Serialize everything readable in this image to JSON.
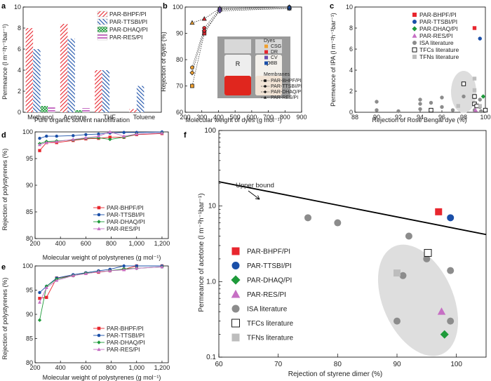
{
  "colors": {
    "bhpf": "#e8262e",
    "ttsbi": "#1a4fa8",
    "dhaq": "#1e9a3a",
    "res": "#c66fc4",
    "isa": "#8c8c8c",
    "tfc": "#ffffff",
    "tfn": "#bdbdbd"
  },
  "chart_data": [
    {
      "id": "a",
      "panel_label": "a",
      "type": "bar",
      "categories": [
        "Methanol",
        "Acetone",
        "THF",
        "Toluene"
      ],
      "series": [
        {
          "name": "PAR-BHPF/PI",
          "values": [
            8.0,
            8.4,
            4.0,
            0.3
          ]
        },
        {
          "name": "PAR-TTSBI/PI",
          "values": [
            6.0,
            7.0,
            4.0,
            2.5
          ]
        },
        {
          "name": "PAR-DHAQ/PI",
          "values": [
            0.6,
            0.2,
            0.0,
            0.0
          ]
        },
        {
          "name": "PAR-RES/PI",
          "values": [
            0.6,
            0.4,
            0.0,
            0.0
          ]
        }
      ],
      "xlabel": "Pure organic solvent nanofiltration",
      "ylabel": "Permeance (l m⁻²h⁻¹bar⁻¹)",
      "ylim": [
        0,
        10
      ],
      "yticks": [
        "0",
        "2",
        "4",
        "6",
        "8",
        "10"
      ]
    },
    {
      "id": "b",
      "panel_label": "b",
      "type": "scatter",
      "xlabel": "Molecular weight of dyes (g mol⁻¹)",
      "ylabel": "Rejection of dyes (%)",
      "xlim": [
        200,
        900
      ],
      "ylim": [
        60,
        100
      ],
      "xticks": [
        "200",
        "300",
        "400",
        "500",
        "600",
        "700",
        "800",
        "900"
      ],
      "yticks": [
        "60",
        "70",
        "80",
        "90",
        "100"
      ],
      "dye_x": [
        242,
        315,
        408,
        826
      ],
      "dyes_title": "Dyes",
      "dyes": [
        {
          "name": "CSG",
          "color": "#f0a030"
        },
        {
          "name": "DR",
          "color": "#e8262e"
        },
        {
          "name": "CV",
          "color": "#6a4fb0"
        },
        {
          "name": "BB",
          "color": "#1a4fa8"
        }
      ],
      "membranes_title": "Membranes",
      "series": [
        {
          "name": "PAR-BHPF/PI",
          "marker": "square",
          "values": [
            70,
            90,
            99,
            99.5
          ]
        },
        {
          "name": "PAR-TTSBI/PI",
          "marker": "circle",
          "values": [
            77,
            92,
            99.3,
            100
          ]
        },
        {
          "name": "PAR-DHAQ/PI",
          "marker": "diamond",
          "values": [
            75,
            91,
            98.5,
            99.5
          ]
        },
        {
          "name": "PAR-RES/PI",
          "marker": "triangle",
          "values": [
            94,
            95.5,
            99.5,
            100
          ]
        }
      ],
      "vial_labels": [
        "R",
        "P"
      ]
    },
    {
      "id": "c",
      "panel_label": "c",
      "type": "scatter",
      "xlabel": "Rejection of Rose Bengal dye (%)",
      "ylabel": "Permeance of IPA (l m⁻²h⁻¹bar⁻¹)",
      "xlim": [
        88,
        100
      ],
      "ylim": [
        0,
        10
      ],
      "xticks": [
        "88",
        "90",
        "92",
        "94",
        "96",
        "98",
        "100"
      ],
      "yticks": [
        "0",
        "2",
        "4",
        "6",
        "8",
        "10"
      ],
      "series": [
        {
          "name": "PAR-BHPF/PI",
          "marker": "square",
          "points": [
            [
              99,
              8
            ]
          ]
        },
        {
          "name": "PAR-TTSBI/PI",
          "marker": "circle",
          "points": [
            [
              99.5,
              7
            ]
          ]
        },
        {
          "name": "PAR-DHAQ/PI",
          "marker": "diamond",
          "points": [
            [
              99.8,
              1.5
            ]
          ]
        },
        {
          "name": "PAR-RES/PI",
          "marker": "triangle",
          "points": [
            [
              99.1,
              0.2
            ]
          ]
        },
        {
          "name": "ISA literature",
          "marker": "circle",
          "points": [
            [
              90,
              0.2
            ],
            [
              90,
              1
            ],
            [
              92,
              0.1
            ],
            [
              94,
              0.3
            ],
            [
              94,
              0.8
            ],
            [
              94,
              1.2
            ],
            [
              95,
              0.9
            ],
            [
              96,
              0.5
            ],
            [
              96,
              1.4
            ],
            [
              97,
              0.2
            ],
            [
              98,
              1.5
            ],
            [
              99,
              0.2
            ],
            [
              99.5,
              0.5
            ],
            [
              99.5,
              1.2
            ],
            [
              99.6,
              0.1
            ]
          ]
        },
        {
          "name": "TFCs literature",
          "marker": "square-open",
          "points": [
            [
              95,
              0.2
            ],
            [
              98,
              2.7
            ],
            [
              99,
              1.5
            ],
            [
              99,
              0.8
            ],
            [
              99.2,
              0.6
            ],
            [
              100,
              0.2
            ]
          ]
        },
        {
          "name": "TFNs literature",
          "marker": "square",
          "points": [
            [
              97.5,
              0.6
            ],
            [
              99,
              3.2
            ],
            [
              99,
              2.1
            ],
            [
              99.5,
              0.6
            ]
          ]
        }
      ]
    },
    {
      "id": "d",
      "panel_label": "d",
      "type": "line",
      "xlabel": "Molecular weight of polystyrenes (g mol⁻¹)",
      "ylabel": "Rejection of polystyrenes (%)",
      "xlim": [
        200,
        1250
      ],
      "ylim": [
        80,
        100
      ],
      "xticks": [
        "200",
        "400",
        "600",
        "800",
        "1,000",
        "1,200"
      ],
      "yticks": [
        "80",
        "85",
        "90",
        "95",
        "100"
      ],
      "x": [
        236,
        290,
        370,
        500,
        600,
        700,
        790,
        900,
        1000,
        1200
      ],
      "series": [
        {
          "name": "PAR-BHPF/PI",
          "marker": "square",
          "values": [
            96.5,
            98,
            98,
            98.4,
            98.7,
            98.8,
            99,
            99,
            99.5,
            99.7
          ]
        },
        {
          "name": "PAR-TTSBI/PI",
          "marker": "circle",
          "values": [
            98.8,
            99.2,
            99.2,
            99.3,
            99.5,
            99.6,
            99.8,
            99.9,
            99.9,
            100
          ]
        },
        {
          "name": "PAR-DHAQ/PI",
          "marker": "diamond",
          "values": [
            97.8,
            98.2,
            98.3,
            98.5,
            98.8,
            98.9,
            98.6,
            99,
            99.6,
            99.8
          ]
        },
        {
          "name": "PAR-RES/PI",
          "marker": "triangle",
          "values": [
            97.6,
            98,
            98.2,
            98.6,
            98.9,
            99.2,
            100,
            99.2,
            99.6,
            99.8
          ]
        }
      ]
    },
    {
      "id": "e",
      "panel_label": "e",
      "type": "line",
      "xlabel": "Molecular weight of polystyrenes (g mol⁻¹)",
      "ylabel": "Rejection of polystyrenes (%)",
      "xlim": [
        200,
        1250
      ],
      "ylim": [
        80,
        100
      ],
      "xticks": [
        "200",
        "400",
        "600",
        "800",
        "1,000",
        "1,200"
      ],
      "yticks": [
        "80",
        "85",
        "90",
        "95",
        "100"
      ],
      "x": [
        236,
        290,
        370,
        500,
        600,
        700,
        790,
        900,
        1000,
        1200
      ],
      "series": [
        {
          "name": "PAR-BHPF/PI",
          "marker": "square",
          "values": [
            93.3,
            93.5,
            97.5,
            98,
            98.5,
            98.7,
            99,
            99.3,
            100,
            100
          ]
        },
        {
          "name": "PAR-TTSBI/PI",
          "marker": "circle",
          "values": [
            94.5,
            95.8,
            97.5,
            98.2,
            98.6,
            99,
            99.3,
            100,
            100,
            100
          ]
        },
        {
          "name": "PAR-DHAQ/PI",
          "marker": "diamond",
          "values": [
            88.8,
            95.8,
            97.3,
            98,
            98.5,
            98.8,
            99,
            99.4,
            99.5,
            99.8
          ]
        },
        {
          "name": "PAR-RES/PI",
          "marker": "triangle",
          "values": [
            92.5,
            95.5,
            97,
            98,
            98.4,
            98.8,
            99,
            99.2,
            99.5,
            99.8
          ]
        }
      ]
    },
    {
      "id": "f",
      "panel_label": "f",
      "type": "scatter",
      "xlabel": "Rejection of styrene dimer  (%)",
      "ylabel": "Permeance of acetone (l m⁻²h⁻¹bar⁻¹)",
      "xlim": [
        60,
        105
      ],
      "ylim_log": [
        0.1,
        100
      ],
      "xticks": [
        "60",
        "70",
        "80",
        "90",
        "100"
      ],
      "yticks": [
        "0.1",
        "1.0",
        "10",
        "100"
      ],
      "upper_bound_label": "Upper bound",
      "upper_bound_line": [
        [
          60,
          21
        ],
        [
          105,
          4.2
        ]
      ],
      "series": [
        {
          "name": "PAR-BHPF/PI",
          "marker": "square",
          "points": [
            [
              97,
              8.4
            ]
          ]
        },
        {
          "name": "PAR-TTSBI/PI",
          "marker": "circle",
          "points": [
            [
              99,
              7
            ]
          ]
        },
        {
          "name": "PAR-DHAQ/PI",
          "marker": "diamond",
          "points": [
            [
              98,
              0.2
            ]
          ]
        },
        {
          "name": "PAR-RES/PI",
          "marker": "triangle",
          "points": [
            [
              97.5,
              0.4
            ]
          ]
        },
        {
          "name": "ISA literature",
          "marker": "circle",
          "points": [
            [
              75,
              7
            ],
            [
              80,
              6
            ],
            [
              92,
              4
            ],
            [
              95,
              2
            ],
            [
              91,
              1.2
            ],
            [
              99,
              1.4
            ],
            [
              90,
              0.3
            ],
            [
              99,
              0.3
            ]
          ]
        },
        {
          "name": "TFCs literature",
          "marker": "square-open",
          "points": [
            [
              95.2,
              2.4
            ]
          ]
        },
        {
          "name": "TFNs literature",
          "marker": "square",
          "points": [
            [
              90,
              1.3
            ]
          ]
        }
      ]
    }
  ]
}
